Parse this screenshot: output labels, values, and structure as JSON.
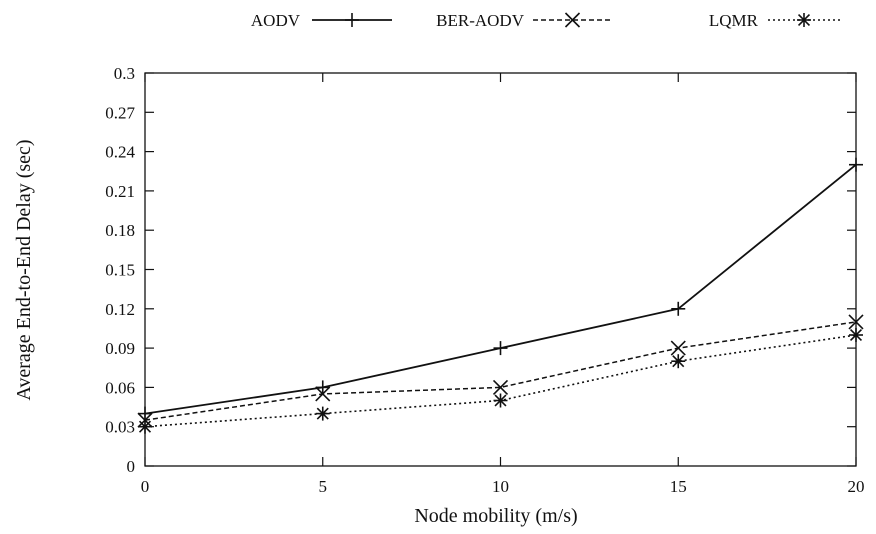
{
  "chart_data": {
    "type": "line",
    "x": [
      0,
      5,
      10,
      15,
      20
    ],
    "xlabel": "Node mobility (m/s)",
    "ylabel": "Average End-to-End Delay (sec)",
    "xlim": [
      0,
      20
    ],
    "ylim": [
      0,
      0.3
    ],
    "xticks": [
      "0",
      "5",
      "10",
      "15",
      "20"
    ],
    "yticks": [
      "0",
      "0.03",
      "0.06",
      "0.09",
      "0.12",
      "0.15",
      "0.18",
      "0.21",
      "0.24",
      "0.27",
      "0.3"
    ],
    "grid": false,
    "legend_position": "top",
    "series": [
      {
        "name": "AODV",
        "values": [
          0.04,
          0.06,
          0.09,
          0.12,
          0.23
        ],
        "line_style": "solid",
        "marker": "plus",
        "color": "#111111"
      },
      {
        "name": "BER-AODV",
        "values": [
          0.035,
          0.055,
          0.06,
          0.09,
          0.11
        ],
        "line_style": "dashed",
        "marker": "x",
        "color": "#111111"
      },
      {
        "name": "LQMR",
        "values": [
          0.03,
          0.04,
          0.05,
          0.08,
          0.1
        ],
        "line_style": "dotted",
        "marker": "asterisk",
        "color": "#111111"
      }
    ]
  }
}
